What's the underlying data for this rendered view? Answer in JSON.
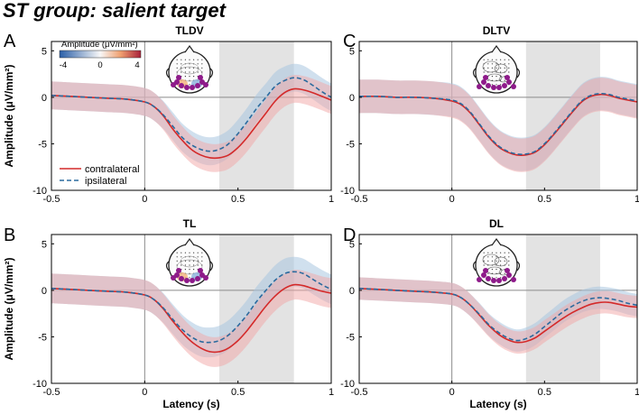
{
  "figure": {
    "title": "ST group: salient target",
    "colorbar": {
      "label": "Amplitude (μV/mm²)",
      "min": -4,
      "mid": 0,
      "max": 4,
      "neg_color": "#2b5fa8",
      "pos_color": "#a8213a"
    },
    "legend": {
      "contralateral": "contralateral",
      "ipsilateral": "ipsilateral"
    },
    "colors": {
      "contralateral": "#d42a2a",
      "ipsilateral": "#2a6a9e",
      "contra_band": "#f2a5a5",
      "ipsi_band": "#a9c6e0",
      "window": "#e3e3e3",
      "electrode": "#8e1a8a"
    }
  },
  "chart_data": [
    {
      "panel": "A",
      "title": "TLDV",
      "type": "line",
      "xlabel": "",
      "ylabel": "Amplitude (μV/mm²)",
      "xlim": [
        -0.5,
        1
      ],
      "ylim": [
        -10,
        6
      ],
      "xticks": [
        "-0.5",
        "0",
        "0.5",
        "1"
      ],
      "yticks": [
        "5",
        "0",
        "-5",
        "-10"
      ],
      "window": [
        0.4,
        0.8
      ],
      "x": [
        -0.5,
        -0.4,
        -0.3,
        -0.2,
        -0.1,
        0,
        0.05,
        0.1,
        0.15,
        0.2,
        0.25,
        0.3,
        0.35,
        0.4,
        0.45,
        0.5,
        0.55,
        0.6,
        0.65,
        0.7,
        0.75,
        0.8,
        0.85,
        0.9,
        0.95,
        1.0
      ],
      "series": [
        {
          "name": "contralateral",
          "values": [
            0.2,
            0.1,
            0.0,
            -0.1,
            -0.2,
            -0.5,
            -1.0,
            -2.0,
            -3.4,
            -4.6,
            -5.6,
            -6.2,
            -6.5,
            -6.5,
            -6.2,
            -5.4,
            -4.3,
            -3.0,
            -1.7,
            -0.4,
            0.5,
            0.9,
            0.8,
            0.5,
            0.1,
            -0.3
          ],
          "ci": 1.5
        },
        {
          "name": "ipsilateral",
          "values": [
            0.2,
            0.1,
            0.0,
            -0.1,
            -0.2,
            -0.5,
            -1.0,
            -1.9,
            -3.1,
            -4.3,
            -5.1,
            -5.6,
            -5.8,
            -5.6,
            -5.0,
            -3.9,
            -2.6,
            -1.2,
            0.0,
            1.2,
            1.8,
            2.1,
            1.9,
            1.3,
            0.6,
            0.0
          ],
          "ci": 1.5
        }
      ]
    },
    {
      "panel": "C",
      "title": "DLTV",
      "type": "line",
      "xlabel": "",
      "ylabel": "",
      "xlim": [
        -0.5,
        1
      ],
      "ylim": [
        -10,
        6
      ],
      "xticks": [
        "-0.5",
        "0",
        "0.5",
        "1"
      ],
      "yticks": [
        "5",
        "0",
        "-5",
        "-10"
      ],
      "window": [
        0.4,
        0.8
      ],
      "x": [
        -0.5,
        -0.4,
        -0.3,
        -0.2,
        -0.1,
        0,
        0.05,
        0.1,
        0.15,
        0.2,
        0.25,
        0.3,
        0.35,
        0.4,
        0.45,
        0.5,
        0.55,
        0.6,
        0.65,
        0.7,
        0.75,
        0.8,
        0.85,
        0.9,
        0.95,
        1.0
      ],
      "series": [
        {
          "name": "contralateral",
          "values": [
            0.1,
            0.1,
            0.0,
            0.0,
            -0.1,
            -0.4,
            -0.8,
            -1.7,
            -3.0,
            -4.3,
            -5.3,
            -5.9,
            -6.2,
            -6.2,
            -5.9,
            -5.1,
            -4.0,
            -2.8,
            -1.6,
            -0.5,
            0.1,
            0.3,
            0.2,
            -0.1,
            -0.3,
            -0.5
          ],
          "ci": 1.8
        },
        {
          "name": "ipsilateral",
          "values": [
            0.1,
            0.1,
            0.0,
            0.0,
            -0.1,
            -0.3,
            -0.7,
            -1.6,
            -2.9,
            -4.2,
            -5.2,
            -5.8,
            -6.1,
            -6.1,
            -5.8,
            -5.0,
            -3.9,
            -2.7,
            -1.5,
            -0.4,
            0.2,
            0.4,
            0.3,
            0.0,
            -0.2,
            -0.4
          ],
          "ci": 1.8
        }
      ]
    },
    {
      "panel": "B",
      "title": "TL",
      "type": "line",
      "xlabel": "Latency (s)",
      "ylabel": "Amplitude (μV/mm²)",
      "xlim": [
        -0.5,
        1
      ],
      "ylim": [
        -10,
        6
      ],
      "xticks": [
        "-0.5",
        "0",
        "0.5",
        "1"
      ],
      "yticks": [
        "5",
        "0",
        "-5",
        "-10"
      ],
      "window": [
        0.4,
        0.8
      ],
      "x": [
        -0.5,
        -0.4,
        -0.3,
        -0.2,
        -0.1,
        0,
        0.05,
        0.1,
        0.15,
        0.2,
        0.25,
        0.3,
        0.35,
        0.4,
        0.45,
        0.5,
        0.55,
        0.6,
        0.65,
        0.7,
        0.75,
        0.8,
        0.85,
        0.9,
        0.95,
        1.0
      ],
      "series": [
        {
          "name": "contralateral",
          "values": [
            0.2,
            0.1,
            0.0,
            -0.1,
            -0.2,
            -0.5,
            -1.0,
            -2.0,
            -3.3,
            -4.5,
            -5.5,
            -6.2,
            -6.6,
            -6.6,
            -6.2,
            -5.4,
            -4.3,
            -3.0,
            -1.7,
            -0.6,
            0.2,
            0.6,
            0.5,
            0.2,
            -0.1,
            -0.3
          ],
          "ci": 1.6
        },
        {
          "name": "ipsilateral",
          "values": [
            0.2,
            0.1,
            0.0,
            -0.1,
            -0.2,
            -0.5,
            -1.0,
            -1.9,
            -3.1,
            -4.2,
            -5.0,
            -5.5,
            -5.6,
            -5.4,
            -4.8,
            -3.8,
            -2.6,
            -1.2,
            0.0,
            1.1,
            1.8,
            2.0,
            1.8,
            1.2,
            0.6,
            0.1
          ],
          "ci": 1.6
        }
      ]
    },
    {
      "panel": "D",
      "title": "DL",
      "type": "line",
      "xlabel": "Latency (s)",
      "ylabel": "",
      "xlim": [
        -0.5,
        1
      ],
      "ylim": [
        -10,
        6
      ],
      "xticks": [
        "-0.5",
        "0",
        "0.5",
        "1"
      ],
      "yticks": [
        "5",
        "0",
        "-5",
        "-10"
      ],
      "window": [
        0.4,
        0.8
      ],
      "x": [
        -0.5,
        -0.4,
        -0.3,
        -0.2,
        -0.1,
        0,
        0.05,
        0.1,
        0.15,
        0.2,
        0.25,
        0.3,
        0.35,
        0.4,
        0.45,
        0.5,
        0.55,
        0.6,
        0.65,
        0.7,
        0.75,
        0.8,
        0.85,
        0.9,
        0.95,
        1.0
      ],
      "series": [
        {
          "name": "contralateral",
          "values": [
            0.2,
            0.1,
            0.0,
            -0.1,
            -0.2,
            -0.4,
            -0.8,
            -1.6,
            -2.7,
            -3.8,
            -4.7,
            -5.3,
            -5.6,
            -5.5,
            -5.1,
            -4.4,
            -3.7,
            -3.0,
            -2.4,
            -1.9,
            -1.5,
            -1.3,
            -1.3,
            -1.5,
            -1.7,
            -1.8
          ],
          "ci": 1.2
        },
        {
          "name": "ipsilateral",
          "values": [
            0.2,
            0.1,
            0.0,
            -0.1,
            -0.2,
            -0.4,
            -0.8,
            -1.6,
            -2.6,
            -3.7,
            -4.5,
            -5.1,
            -5.4,
            -5.2,
            -4.7,
            -3.9,
            -3.1,
            -2.3,
            -1.7,
            -1.2,
            -0.9,
            -0.8,
            -0.9,
            -1.1,
            -1.4,
            -1.6
          ],
          "ci": 1.2
        }
      ]
    }
  ]
}
